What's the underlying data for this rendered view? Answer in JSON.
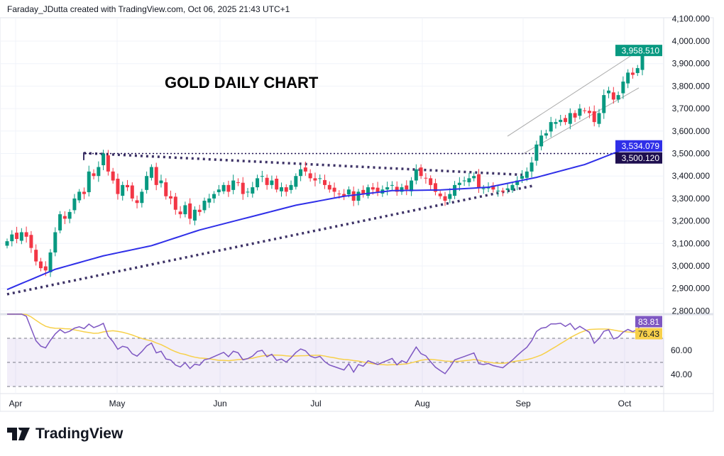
{
  "header": {
    "attribution": "Faraday_JDutta created with TradingView.com, Oct 06, 2025 21:43 UTC+1"
  },
  "footer": {
    "brand": "TradingView",
    "logo_icon": "tradingview-logo-icon"
  },
  "chart_data": {
    "type": "candlestick",
    "title": "GOLD DAILY CHART",
    "price_ticks": [
      "4,100.000",
      "4,000.000",
      "3,900.000",
      "3,800.000",
      "3,700.000",
      "3,600.000",
      "3,500.000",
      "3,400.000",
      "3,300.000",
      "3,200.000",
      "3,100.000",
      "3,000.000",
      "2,900.000",
      "2,800.000"
    ],
    "ylim": [
      2790,
      4110
    ],
    "month_labels": [
      "Apr",
      "May",
      "Jun",
      "Jul",
      "Aug",
      "Sep",
      "Oct"
    ],
    "closes": [
      3110,
      3140,
      3120,
      3150,
      3130,
      3080,
      3020,
      2990,
      2980,
      3060,
      3150,
      3230,
      3210,
      3240,
      3300,
      3330,
      3320,
      3420,
      3400,
      3440,
      3500,
      3420,
      3380,
      3320,
      3360,
      3350,
      3300,
      3280,
      3330,
      3400,
      3440,
      3360,
      3380,
      3310,
      3300,
      3250,
      3230,
      3270,
      3210,
      3250,
      3240,
      3290,
      3300,
      3320,
      3340,
      3360,
      3330,
      3380,
      3370,
      3320,
      3330,
      3350,
      3390,
      3400,
      3360,
      3380,
      3340,
      3350,
      3330,
      3360,
      3400,
      3430,
      3420,
      3390,
      3380,
      3390,
      3360,
      3340,
      3330,
      3320,
      3310,
      3340,
      3290,
      3330,
      3320,
      3350,
      3340,
      3330,
      3340,
      3350,
      3360,
      3330,
      3350,
      3340,
      3380,
      3430,
      3400,
      3390,
      3360,
      3330,
      3310,
      3290,
      3320,
      3360,
      3370,
      3380,
      3390,
      3400,
      3350,
      3345,
      3350,
      3340,
      3335,
      3330,
      3345,
      3360,
      3380,
      3400,
      3420,
      3460,
      3540,
      3580,
      3590,
      3640,
      3640,
      3650,
      3640,
      3680,
      3660,
      3700,
      3690,
      3680,
      3640,
      3680,
      3760,
      3780,
      3740,
      3760,
      3820,
      3860,
      3850,
      3880,
      3958.51
    ],
    "sma": [
      2895,
      2985,
      3045,
      3090,
      3160,
      3215,
      3270,
      3310,
      3335,
      3338,
      3350,
      3394,
      3451,
      3534.079
    ],
    "last_price": "3,958.510",
    "sma_last": "3,534.079",
    "level": "3,500.120",
    "level_value": 3500.12,
    "trendlines": {
      "upper_descending": [
        3502,
        3404
      ],
      "lower_ascending": [
        2874,
        3356
      ],
      "channel_upper": [
        3577,
        3968
      ],
      "channel_lower": [
        3495,
        3792
      ]
    },
    "rsi": {
      "ticks": [
        "60.00",
        "40.00"
      ],
      "bands": [
        70,
        50,
        30
      ],
      "last": "83.81",
      "ma_last": "76.43"
    },
    "colors": {
      "up": "#089981",
      "down": "#f23645",
      "sma": "#2f2fe8",
      "level": "#1e0f4f",
      "rsi": "#7e57c2",
      "rsi_ma": "#f7d04a",
      "dotted": "#3d3266"
    }
  }
}
